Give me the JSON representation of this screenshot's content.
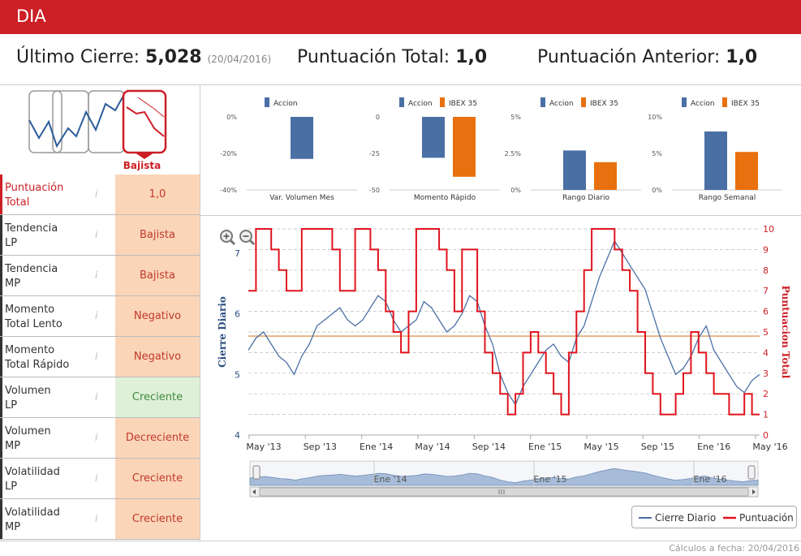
{
  "header": {
    "title": "DIA"
  },
  "summary": {
    "last_close_label": "Último Cierre:",
    "last_close_value": "5,028",
    "last_close_date": "(20/04/2016)",
    "total_label": "Puntuación Total:",
    "total_value": "1,0",
    "prev_label": "Puntuación Anterior:",
    "prev_value": "1,0"
  },
  "trend": {
    "label": "Bajista"
  },
  "rows": [
    {
      "label1": "Puntuación",
      "label2": "Total",
      "value": "1,0",
      "style": "neg",
      "main": true
    },
    {
      "label1": "Tendencia",
      "label2": "LP",
      "value": "Bajista",
      "style": "neg"
    },
    {
      "label1": "Tendencia",
      "label2": "MP",
      "value": "Bajista",
      "style": "neg"
    },
    {
      "label1": "Momento",
      "label2": "Total Lento",
      "value": "Negativo",
      "style": "neg"
    },
    {
      "label1": "Momento",
      "label2": "Total Rápido",
      "value": "Negativo",
      "style": "neg"
    },
    {
      "label1": "Volumen",
      "label2": "LP",
      "value": "Creciente",
      "style": "pos"
    },
    {
      "label1": "Volumen",
      "label2": "MP",
      "value": "Decreciente",
      "style": "neg"
    },
    {
      "label1": "Volatilidad",
      "label2": "LP",
      "value": "Creciente",
      "style": "neg"
    },
    {
      "label1": "Volatilidad",
      "label2": "MP",
      "value": "Creciente",
      "style": "neg"
    }
  ],
  "info_glyph": "i",
  "colors": {
    "accion": "#4a6fa5",
    "ibex": "#e8700e",
    "red": "#cc1f26"
  },
  "mini_charts": [
    {
      "title": "Var. Volumen Mes",
      "legend": [
        "Accion"
      ],
      "yticks": [
        "0%",
        "-20%",
        "-40%"
      ],
      "ymin": -40,
      "ymax": 0,
      "values": [
        -23
      ]
    },
    {
      "title": "Momento Rápido",
      "legend": [
        "Accion",
        "IBEX 35"
      ],
      "yticks": [
        "0",
        "-25",
        "-50"
      ],
      "ymin": -50,
      "ymax": 0,
      "values": [
        -28,
        -41
      ]
    },
    {
      "title": "Rango Diario",
      "legend": [
        "Accion",
        "IBEX 35"
      ],
      "yticks": [
        "5%",
        "2.5%",
        "0%"
      ],
      "ymin": 0,
      "ymax": 5,
      "values": [
        2.7,
        1.9
      ]
    },
    {
      "title": "Rango Semanal",
      "legend": [
        "Accion",
        "IBEX 35"
      ],
      "yticks": [
        "10%",
        "5%",
        "0%"
      ],
      "ymin": 0,
      "ymax": 10,
      "values": [
        8.0,
        5.2
      ]
    }
  ],
  "chart_data": {
    "type": "line",
    "ylabel_left": "Cierre Diario",
    "ylabel_right": "Puntuacion Total",
    "x_labels": [
      "May '13",
      "Sep '13",
      "Ene '14",
      "May '14",
      "Sep '14",
      "Ene '15",
      "May '15",
      "Sep '15",
      "Ene '16",
      "May '16"
    ],
    "y_left_ticks": [
      "4",
      "5",
      "6",
      "7"
    ],
    "y_left_range": [
      4,
      7.4
    ],
    "y_right_ticks": [
      "0",
      "1",
      "2",
      "3",
      "4",
      "5",
      "6",
      "7",
      "8",
      "9",
      "10"
    ],
    "y_right_range": [
      0,
      10
    ],
    "reference_value": 4.8,
    "series": [
      {
        "name": "Cierre Diario",
        "axis": "left",
        "color": "#4a6fa5",
        "values": [
          5.4,
          5.6,
          5.7,
          5.5,
          5.3,
          5.2,
          5.0,
          5.3,
          5.5,
          5.8,
          5.9,
          6.0,
          6.1,
          5.9,
          5.8,
          5.9,
          6.1,
          6.3,
          6.2,
          5.9,
          5.7,
          5.8,
          5.9,
          6.2,
          6.1,
          5.9,
          5.7,
          5.8,
          6.0,
          6.3,
          6.2,
          5.8,
          5.5,
          5.0,
          4.7,
          4.5,
          4.8,
          5.0,
          5.2,
          5.4,
          5.5,
          5.3,
          5.2,
          5.6,
          5.8,
          6.2,
          6.6,
          6.9,
          7.2,
          7.0,
          6.8,
          6.6,
          6.4,
          6.0,
          5.6,
          5.3,
          5.0,
          5.1,
          5.3,
          5.6,
          5.8,
          5.4,
          5.2,
          5.0,
          4.8,
          4.7,
          4.9,
          5.0
        ]
      },
      {
        "name": "Puntuación",
        "axis": "right",
        "color": "#e0141e",
        "values": [
          7,
          10,
          10,
          9,
          8,
          7,
          7,
          10,
          10,
          10,
          10,
          9,
          7,
          7,
          10,
          10,
          9,
          8,
          6,
          5,
          4,
          6,
          10,
          10,
          10,
          9,
          8,
          6,
          9,
          9,
          6,
          4,
          3,
          2,
          1,
          2,
          4,
          5,
          4,
          3,
          2,
          1,
          4,
          6,
          8,
          10,
          10,
          10,
          9,
          8,
          7,
          5,
          3,
          2,
          1,
          1,
          2,
          3,
          5,
          4,
          3,
          2,
          2,
          1,
          1,
          2,
          1,
          1
        ]
      }
    ]
  },
  "navigator": {
    "labels": [
      "Ene '14",
      "Ene '15",
      "Ene '16"
    ]
  },
  "legend": {
    "items": [
      "Cierre Diario",
      "Puntuación"
    ]
  },
  "footer": {
    "text": "Cálculos a fecha: 20/04/2016"
  }
}
